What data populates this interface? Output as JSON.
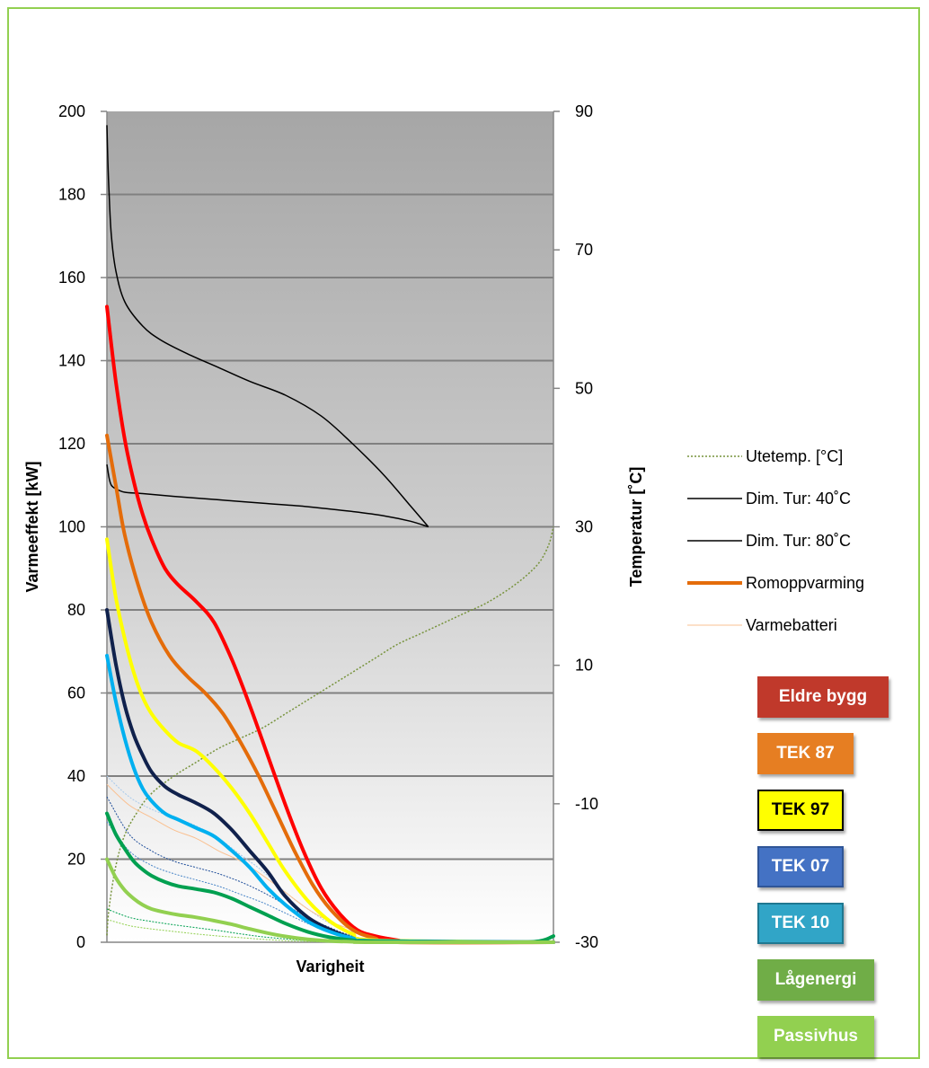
{
  "chart_data": {
    "type": "line",
    "xlabel": "Varigheit",
    "ylabel": "Varmeeffekt [kW]",
    "ylim": [
      0,
      200
    ],
    "y_ticks": [
      0,
      20,
      40,
      60,
      80,
      100,
      120,
      140,
      160,
      180,
      200
    ],
    "y2label": "Temperatur [˚C]",
    "y2lim": [
      -30,
      90
    ],
    "y2_ticks": [
      -30,
      -10,
      10,
      30,
      50,
      70,
      90
    ],
    "xlim": [
      0,
      1
    ],
    "grid": true,
    "legend_position": "right",
    "series": [
      {
        "name": "Utetemp. [°C]",
        "axis": "right",
        "style": "dotted",
        "color": "#77933c",
        "x": [
          0,
          0.005,
          0.02,
          0.04,
          0.07,
          0.1,
          0.15,
          0.2,
          0.25,
          0.3,
          0.35,
          0.4,
          0.45,
          0.5,
          0.55,
          0.6,
          0.65,
          0.7,
          0.75,
          0.8,
          0.85,
          0.9,
          0.94,
          0.97,
          0.99,
          1.0
        ],
        "y": [
          -29,
          -25,
          -19,
          -14.5,
          -11,
          -8.5,
          -6,
          -4,
          -2,
          -0.5,
          1,
          3,
          5,
          7,
          9,
          11,
          13,
          14.5,
          16,
          17.5,
          19,
          21,
          23,
          25,
          27.5,
          30
        ]
      },
      {
        "name": "Dim. Tur: 40˚C",
        "axis": "right",
        "style": "solid",
        "color": "#000000",
        "x": [
          0,
          0.005,
          0.01,
          0.02,
          0.04,
          0.08,
          0.15,
          0.25,
          0.35,
          0.45,
          0.55,
          0.62,
          0.68,
          0.72
        ],
        "y": [
          39,
          37,
          36,
          35.5,
          35,
          34.8,
          34.4,
          33.9,
          33.4,
          32.9,
          32.2,
          31.6,
          30.8,
          30
        ]
      },
      {
        "name": "Dim. Tur: 80˚C",
        "axis": "right",
        "style": "solid",
        "color": "#000000",
        "x": [
          0,
          0.002,
          0.005,
          0.01,
          0.02,
          0.04,
          0.08,
          0.12,
          0.18,
          0.25,
          0.32,
          0.4,
          0.48,
          0.55,
          0.62,
          0.68,
          0.72
        ],
        "y": [
          88,
          83,
          78,
          72,
          67,
          62.5,
          59,
          57,
          55,
          53,
          51,
          49,
          46,
          42,
          37.5,
          33,
          30
        ]
      },
      {
        "name": "Romoppvarming",
        "axis": "left",
        "style": "solid",
        "color": "#e46c0a",
        "x": [
          0,
          0.02,
          0.04,
          0.06,
          0.08,
          0.1,
          0.13,
          0.16,
          0.2,
          0.24,
          0.28,
          0.32,
          0.36,
          0.4,
          0.44,
          0.48,
          0.52,
          0.56,
          0.6,
          0.65,
          0.7,
          1.0
        ],
        "y": [
          153,
          135,
          121,
          111,
          103,
          97,
          90,
          86,
          82,
          77,
          68,
          57,
          45,
          33,
          22,
          13,
          7,
          3,
          1.5,
          0.5,
          0,
          0
        ]
      },
      {
        "name": "Varmebatteri",
        "axis": "left",
        "style": "thin",
        "color": "#fac090",
        "x": [
          0,
          0.05,
          0.1,
          0.15,
          0.2,
          0.25,
          0.3,
          0.35,
          0.4,
          0.45,
          0.5,
          0.55,
          0.6,
          0.65,
          0.7
        ],
        "y": [
          38,
          33,
          30,
          27,
          25,
          22,
          19.5,
          16,
          12,
          8,
          5,
          3,
          1.5,
          0.5,
          0
        ]
      }
    ],
    "building_curves": [
      {
        "name": "Eldre bygg",
        "color": "#ff0000",
        "x": [
          0,
          0.02,
          0.04,
          0.06,
          0.08,
          0.1,
          0.13,
          0.16,
          0.2,
          0.24,
          0.28,
          0.32,
          0.36,
          0.4,
          0.44,
          0.48,
          0.52,
          0.56,
          0.6,
          0.65,
          0.7,
          1.0
        ],
        "y": [
          153,
          135,
          121,
          111,
          103,
          97,
          90,
          86,
          82,
          77,
          68,
          57,
          45,
          33,
          22,
          13,
          7,
          3,
          1.5,
          0.5,
          0,
          0
        ]
      },
      {
        "name": "TEK 87",
        "color": "#e46c0a",
        "x": [
          0,
          0.02,
          0.04,
          0.07,
          0.1,
          0.14,
          0.18,
          0.22,
          0.26,
          0.3,
          0.34,
          0.38,
          0.42,
          0.46,
          0.5,
          0.55,
          0.6,
          0.65,
          1.0
        ],
        "y": [
          122,
          110,
          98,
          86,
          77,
          69,
          64,
          60,
          55,
          48,
          40,
          31,
          22,
          14,
          8,
          3,
          1,
          0,
          0
        ]
      },
      {
        "name": "TEK 97",
        "color": "#ffff00",
        "x": [
          0,
          0.02,
          0.04,
          0.06,
          0.08,
          0.1,
          0.13,
          0.16,
          0.2,
          0.24,
          0.28,
          0.32,
          0.36,
          0.4,
          0.45,
          0.5,
          0.55,
          0.6,
          1.0
        ],
        "y": [
          97,
          83,
          73,
          65,
          59,
          55,
          51,
          48,
          46,
          42,
          37,
          31,
          24,
          17,
          10,
          5,
          2,
          0.5,
          0
        ]
      },
      {
        "name": "TEK 07",
        "color": "#10214c",
        "x": [
          0,
          0.02,
          0.04,
          0.06,
          0.08,
          0.1,
          0.13,
          0.16,
          0.2,
          0.24,
          0.28,
          0.32,
          0.36,
          0.4,
          0.45,
          0.5,
          0.55,
          0.6,
          1.0
        ],
        "y": [
          80,
          67,
          57,
          50,
          45,
          41,
          37.5,
          35.5,
          33.5,
          31,
          27,
          22,
          17,
          11,
          6,
          3,
          1,
          0.3,
          0
        ]
      },
      {
        "name": "TEK 10",
        "color": "#00b0f0",
        "x": [
          0,
          0.02,
          0.04,
          0.06,
          0.08,
          0.1,
          0.13,
          0.16,
          0.2,
          0.24,
          0.28,
          0.32,
          0.36,
          0.4,
          0.45,
          0.5,
          0.55,
          0.6,
          1.0
        ],
        "y": [
          69,
          58,
          49,
          42,
          37,
          34,
          31,
          29.5,
          27.5,
          25.5,
          22,
          18,
          13,
          9,
          5,
          2.5,
          1,
          0.3,
          0
        ]
      },
      {
        "name": "Lågenergi",
        "color": "#00a050",
        "x": [
          0,
          0.02,
          0.04,
          0.06,
          0.08,
          0.1,
          0.13,
          0.16,
          0.2,
          0.24,
          0.28,
          0.32,
          0.36,
          0.4,
          0.45,
          0.5,
          0.55,
          0.6,
          0.9,
          0.97,
          1.0
        ],
        "y": [
          31,
          26,
          22.5,
          19.5,
          17.5,
          16,
          14.5,
          13.5,
          12.8,
          12,
          10.5,
          8.5,
          6.5,
          4.5,
          2.5,
          1.2,
          0.5,
          0.2,
          0,
          0.3,
          1.5
        ]
      },
      {
        "name": "Passivhus",
        "color": "#92d050",
        "x": [
          0,
          0.02,
          0.04,
          0.06,
          0.08,
          0.1,
          0.13,
          0.16,
          0.2,
          0.24,
          0.28,
          0.32,
          0.36,
          0.4,
          0.45,
          0.5,
          0.55,
          0.6,
          1.0
        ],
        "y": [
          20,
          15.5,
          12.5,
          10.5,
          9,
          8,
          7.2,
          6.6,
          6,
          5.2,
          4.3,
          3.2,
          2.2,
          1.4,
          0.7,
          0.3,
          0.1,
          0,
          0
        ]
      }
    ],
    "thin_curves": [
      {
        "color": "#a6c9ec",
        "x": [
          0,
          0.05,
          0.1,
          0.15,
          0.2,
          0.25,
          0.3,
          0.35,
          0.4,
          0.45,
          0.5,
          0.55,
          0.6,
          0.7
        ],
        "y": [
          40,
          35,
          32,
          30,
          28,
          25,
          21,
          17,
          12,
          8,
          4.5,
          2.5,
          1,
          0
        ]
      },
      {
        "color": "#1f4e9a",
        "x": [
          0,
          0.05,
          0.1,
          0.15,
          0.2,
          0.25,
          0.3,
          0.35,
          0.4,
          0.45,
          0.5,
          0.55,
          0.6,
          0.7
        ],
        "y": [
          35,
          26,
          22,
          19.5,
          18,
          16.5,
          14.5,
          12,
          9,
          6,
          3.5,
          1.5,
          0.5,
          0
        ]
      },
      {
        "color": "#4a86c8",
        "x": [
          0,
          0.05,
          0.1,
          0.15,
          0.2,
          0.25,
          0.3,
          0.35,
          0.4,
          0.45,
          0.5,
          0.55,
          0.6,
          0.7
        ],
        "y": [
          29,
          22,
          18.5,
          16.5,
          15,
          13.5,
          11.5,
          9.5,
          7,
          4.5,
          2.5,
          1,
          0.3,
          0
        ]
      },
      {
        "color": "#00a050",
        "x": [
          0,
          0.05,
          0.1,
          0.15,
          0.2,
          0.25,
          0.3,
          0.35,
          0.4,
          0.45,
          0.5,
          0.6
        ],
        "y": [
          8,
          6,
          5,
          4.2,
          3.5,
          2.8,
          2,
          1.3,
          0.8,
          0.4,
          0.1,
          0
        ]
      },
      {
        "color": "#92d050",
        "x": [
          0,
          0.05,
          0.1,
          0.15,
          0.2,
          0.25,
          0.3,
          0.35,
          0.4,
          0.45,
          0.5,
          0.6
        ],
        "y": [
          5.5,
          4,
          3.2,
          2.6,
          2,
          1.5,
          1.1,
          0.7,
          0.4,
          0.2,
          0.05,
          0
        ]
      }
    ]
  },
  "legend": {
    "items": [
      {
        "label": "Utetemp. [°C]",
        "color": "#77933c",
        "style": "dotted"
      },
      {
        "label": "Dim. Tur: 40˚C",
        "color": "#000000",
        "style": "solid"
      },
      {
        "label": "Dim. Tur: 80˚C",
        "color": "#000000",
        "style": "solid"
      },
      {
        "label": "Romoppvarming",
        "color": "#e46c0a",
        "style": "thick"
      },
      {
        "label": "Varmebatteri",
        "color": "#fac090",
        "style": "thin"
      }
    ]
  },
  "badges": [
    {
      "label": "Eldre bygg",
      "bg": "#c0392b",
      "text": "#ffffff",
      "border": "none"
    },
    {
      "label": "TEK 87",
      "bg": "#e67e22",
      "text": "#ffffff",
      "border": "none"
    },
    {
      "label": "TEK 97",
      "bg": "#ffff00",
      "text": "#000000",
      "border": "#000000"
    },
    {
      "label": "TEK 07",
      "bg": "#4472c4",
      "text": "#ffffff",
      "border": "#2f5597"
    },
    {
      "label": "TEK 10",
      "bg": "#31a5c7",
      "text": "#ffffff",
      "border": "#1f7891"
    },
    {
      "label": "Lågenergi",
      "bg": "#70ad47",
      "text": "#ffffff",
      "border": "none"
    },
    {
      "label": "Passivhus",
      "bg": "#92d050",
      "text": "#ffffff",
      "border": "none"
    }
  ]
}
